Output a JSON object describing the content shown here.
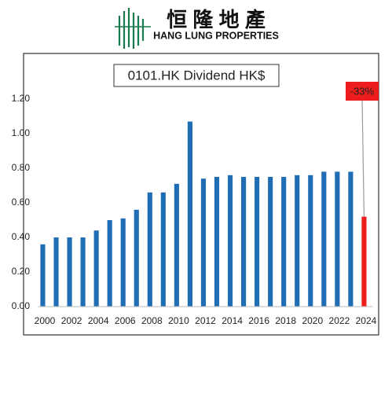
{
  "header": {
    "chinese_name": "恒 隆 地 產",
    "english_name": "HANG LUNG PROPERTIES"
  },
  "chart_data": {
    "type": "bar",
    "title": "0101.HK Dividend HK$",
    "categories": [
      "2000",
      null,
      "2002",
      null,
      "2004",
      null,
      "2006",
      null,
      "2008",
      null,
      "2010",
      null,
      "2012",
      null,
      "2014",
      null,
      "2016",
      null,
      "2018",
      null,
      "2020",
      null,
      "2022",
      null,
      "2024"
    ],
    "values": [
      0.36,
      0.4,
      0.4,
      0.4,
      0.44,
      0.5,
      0.51,
      0.56,
      0.66,
      0.66,
      0.71,
      1.07,
      0.74,
      0.75,
      0.76,
      0.75,
      0.75,
      0.75,
      0.75,
      0.76,
      0.76,
      0.78,
      0.78,
      0.78,
      0.52
    ],
    "colors": [
      "#1f6db4",
      "#1f6db4",
      "#1f6db4",
      "#1f6db4",
      "#1f6db4",
      "#1f6db4",
      "#1f6db4",
      "#1f6db4",
      "#1f6db4",
      "#1f6db4",
      "#1f6db4",
      "#1f6db4",
      "#1f6db4",
      "#1f6db4",
      "#1f6db4",
      "#1f6db4",
      "#1f6db4",
      "#1f6db4",
      "#1f6db4",
      "#1f6db4",
      "#1f6db4",
      "#1f6db4",
      "#1f6db4",
      "#1f6db4",
      "#ee1c1c"
    ],
    "ylim": [
      0,
      1.2
    ],
    "yticks": [
      {
        "value": 0,
        "label": "0.00"
      },
      {
        "value": 0.2,
        "label": "0.20"
      },
      {
        "value": 0.4,
        "label": "0.40"
      },
      {
        "value": 0.6,
        "label": "0.60"
      },
      {
        "value": 0.8,
        "label": "0.80"
      },
      {
        "value": 1.0,
        "label": "1.00"
      },
      {
        "value": 1.2,
        "label": "1.20"
      }
    ],
    "grid": false,
    "annotation": {
      "text": "-33%",
      "color": "#ee1c1c"
    }
  }
}
